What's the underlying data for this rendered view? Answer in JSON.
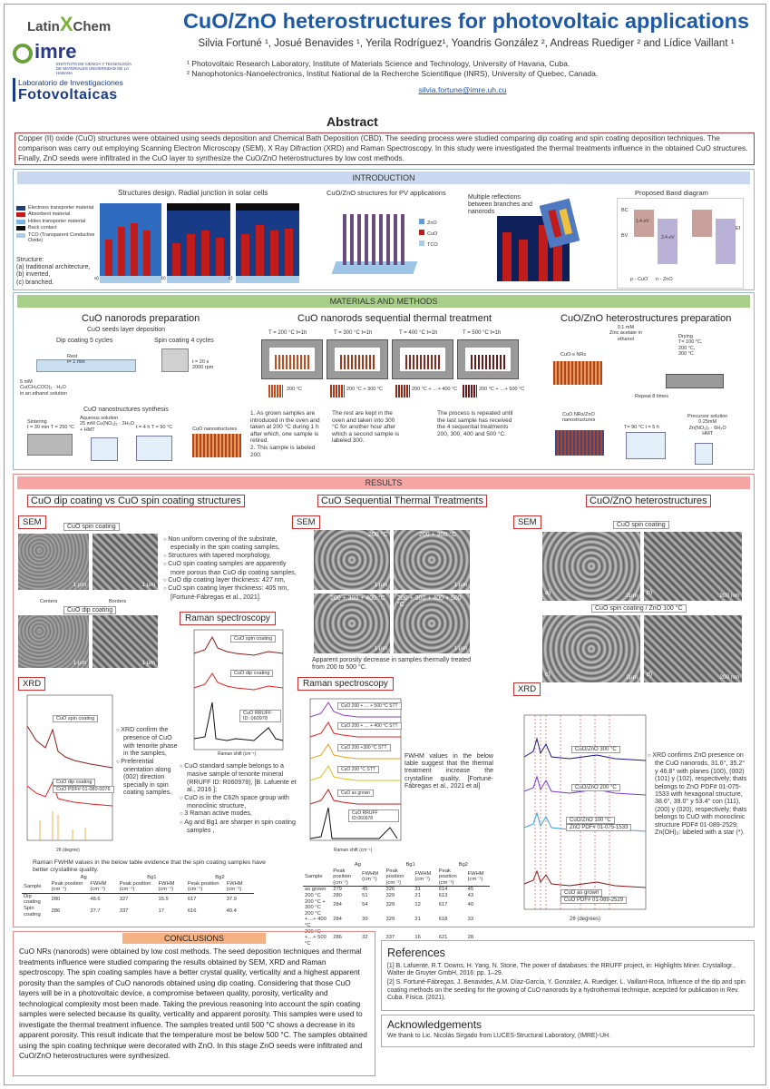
{
  "header": {
    "title": "CuO/ZnO heterostructures for photovoltaic applications",
    "authors": "Silvia Fortuné ¹, Josué Benavides ¹, Yerila Rodríguez¹, Yoandris González ², Andreas Ruediger ² and Lídice Vaillant ¹",
    "affiliation1": "¹ Photovoltaic Research Laboratory, Institute of Materials Science and Technology, University of Havana, Cuba.",
    "affiliation2": "² Nanophotonics-Nanoelectronics, Institut National de la Recherche Scientifique (INRS), University of Quebec, Canada.",
    "email": "silvia.fortune@imre.uh.cu"
  },
  "logos": {
    "latin_a": "Latin",
    "latin_x": "X",
    "latin_b": "Chem",
    "imre": "imre",
    "imre_sub": "INSTITUTO DE CIENCIA Y TECNOLOGÍA DE MATERIALES UNIVERSIDAD DE LA HABANA",
    "lab_line1": "Laboratorio de Investigaciones",
    "lab_line2": "Fotovoltaicas"
  },
  "abstract": {
    "heading": "Abstract",
    "text": "Copper (II) oxide (CuO) structures were obtained using seeds deposition and Chemical Bath Deposition (CBD). The seeding process were studied comparing dip coating and spin coating deposition techniques. The comparison was carry out employing Scanning Electron Microscopy (SEM), X Ray Difraction (XRD) and Raman Spectroscopy. In this study were investigated the thermal treatments influence in the obtained CuO structures. Finally, ZnO seeds were infiltrated in the CuO layer to synthesize the CuO/ZnO heterostructures by low cost methods."
  },
  "intro": {
    "banner": "INTRODUCTION",
    "structures_title": "Structures design. Radial junction in solar cells",
    "legend": [
      "Electrons transporter material",
      "Absorbent material",
      "Holes transporter material",
      "Back contact",
      "TCO (Transparent Conductive Oxide)"
    ],
    "legend_colors": [
      "#1b3f7a",
      "#c01c1c",
      "#7fb3e0",
      "#111111",
      "#a9cce9"
    ],
    "structure_note": "Structure:\n(a) traditional architecture,\n(b) inverted,\n(c) branched.",
    "panel_a": "a)",
    "panel_b": "b)",
    "panel_c": "c)",
    "cuo_zno_title": "CuO/ZnO structures for PV applications",
    "zno_legend": [
      "ZnO",
      "CuO",
      "TCO"
    ],
    "reflections": "Multiple reflections between branches and nanorods",
    "band_title": "Proposed Band diagram",
    "band_labels": [
      "BC",
      "BV",
      "p - CuO",
      "n - ZnO",
      "1.4 eV",
      "3.4 eV",
      "Ef"
    ]
  },
  "methods": {
    "banner": "MATERIALS AND METHODS",
    "cuo_prep_title": "CuO nanorods preparation",
    "seeds": "CuO seeds layer deposition",
    "dip": "Dip coating 5 cycles",
    "spin": "Spin coating 4 cycles",
    "rest": "Rest\nt= 1 min",
    "seed_sol": "5 mM\nCu(CH₃COO)₂ · H₂O\nin an ethanol solution",
    "spin_cond": "t = 20 s\n2000 rpm",
    "synth": "CuO nanostructures synthesis",
    "sinter": "Sintering\nt = 30 min T = 250 °C",
    "aqueous": "Aqueous solution\n25 mM Cu(NO₃)₂ · 3H₂O\n+ HMT",
    "bath": "t = 4 h T = 90 °C",
    "nanostruct": "CuO nanostructures",
    "thermal_title": "CuO nanorods sequential thermal treatment",
    "ovens": [
      "T = 200 °C  t=1h",
      "T = 300 °C  t=1h",
      "T = 400 °C  t=1h",
      "T = 500 °C  t=1h"
    ],
    "samples": [
      "200 °C",
      "200 °C + 300 °C",
      "200 °C + …+ 400 °C",
      "200 °C + …+ 500 °C"
    ],
    "step1": "1. As grown samples are introduced in the oven and taken at 200 °C during 1 h after which, one sample is retired.\n2. This sample is labeled 200.",
    "step2": "The rest are kept in the oven and taken into 300 °C for another hour after which a second sample is labeled 300.",
    "step3": "The process is repeated until the last sample has received the 4 sequential treatments 200, 300, 400 and 500 °C.",
    "hetero_title": "CuO/ZnO heterostructures preparation",
    "zinc": "0.1 mM\nZinc acetate in\nethanol",
    "drying": "Drying\nT= 100 °C,\n200 °C,\n300 °C",
    "cuo_s": "CuO-s NRs",
    "repeat": "Repeat 8 times",
    "precursor": "Precursor solution\n0.25mM\nZn(NO₃)₂ · 6H₂O\nHMT",
    "hetero_nr": "CuO NRs/ZnO\nnanostructures",
    "hetero_bath": "T= 90 °C  t = 5 h"
  },
  "results": {
    "banner": "RESULTS",
    "col1_title": "CuO dip coating vs CuO spin coating structures",
    "col2_title": "CuO Sequential Thermal Treatments",
    "col3_title": "CuO/ZnO heterostructures",
    "sem": "SEM",
    "xrd": "XRD",
    "raman": "Raman spectroscopy",
    "spin_label": "CuO spin coating",
    "dip_label": "CuO dip coating",
    "centers": "Centers",
    "borders": "Borders",
    "sem_bullets": [
      "Non uniform covering of the substrate, especially in the spin coating samples,",
      "Structures with tapered morphology,",
      "CuO spin coating samples are apparently more porous than CuO dip coating samples,",
      "CuO dip coating layer thickness: 427 nm,",
      "CuO spin coating layer thickness: 405 nm, [Fortuné-Fábregas et al., 2021]."
    ],
    "xrd_bullets": [
      "XRD confirm the presence of CuO with tenorite phase in the samples,",
      "Preferential orientation along (002) direction specially in spin coating samples."
    ],
    "raman_bullets": [
      "CuO standard sample belongs to a masive sample of tenorite mineral (RRUFF ID: R060978), [B. Lafuente et al., 2016 ];",
      "CuO is in the C62h space group with monoclinic structure,",
      "3 Raman active modes,",
      "Ag and Bg1 are sharper in spin coating samples ,"
    ],
    "raman_note": "Raman FWHM values in the below table evidence that the spin coating samples have better crystalline quality.",
    "xrd_legend": [
      "CuO spin coating",
      "CuO dip coating",
      "CuO PDF# 01-080-0076"
    ],
    "raman_legend": [
      "CuO spin coating",
      "CuO dip coating",
      "CuO RRUFF ID: 060978"
    ],
    "xrd_xlabel": "2θ (degree)",
    "intensity": "Intensity (a.u.)",
    "raman_x": "Raman shift (cm⁻¹)",
    "sem_thermal": [
      "200 °C",
      "200 + 300 °C",
      "200 + 300 + 400 °C",
      "200 + 300 + 400 + 500 °C"
    ],
    "porosity": "Apparent porosity decrease in samples thermally treated from 200 to 500 °C.",
    "thermal_legend": [
      "CuO 200 + … + 500 °C STT",
      "CuO 200 + … + 400 °C STT",
      "CuO 200 +300 °C STT",
      "CuO 200 °C STT",
      "CuO as grown",
      "CuO RRUFF ID:060978"
    ],
    "fwhm_note": "FWHM values in the below table suggest that the thermal treatment increase the crystalline quality. [Fortuné-Fábregas et al., 2021 et al]",
    "hetero_sem_labels": [
      "CuO spin coating",
      "CuO spin coating / ZnO 100 °C"
    ],
    "hetero_xrd_legend": [
      "CuO/ZnO 300 °C",
      "CuO/ZnO 200 °C",
      "CuO/ZnO 100 °C",
      "ZnO PDF# 01-075-1533",
      "CuO as grown",
      "CuO PDF# 01-089-2529"
    ],
    "hetero_xrd_x": "2θ (degrees)",
    "hetero_bullet": "XRD confirms ZnO presence on the CuO nanorods, 31.6°, 35.2° y 46.8° with planes (100), (002) (101) y (102), respectively; thats belongs to ZnO PDF# 01-075-1533 with hexagonal structure, 38.6°, 39.0° y 53.4° con (111), (200) y (020), respectively; thats belongs to CuO with monoclinic structure PDF# 01-089-2529; Zn(OH)₂: labeled with a star (*).",
    "table1": {
      "groups": [
        "Ag",
        "Bg1",
        "Bg2"
      ],
      "head": [
        "Sample",
        "Peak position (cm⁻¹)",
        "FWHM (cm⁻¹)",
        "Peak position (cm⁻¹)",
        "FWHM (cm⁻¹)",
        "Peak position (cm⁻¹)",
        "FWHM (cm⁻¹)"
      ],
      "rows": [
        [
          "Dip coating",
          "280",
          "48.6",
          "327",
          "15.5",
          "617",
          "37.9"
        ],
        [
          "Spin coating",
          "286",
          "37.7",
          "337",
          "17",
          "616",
          "40.4"
        ]
      ]
    },
    "table2": {
      "groups": [
        "Ag",
        "Bg1",
        "Bg2"
      ],
      "head": [
        "Sample",
        "Peak position (cm⁻¹)",
        "FWHM (cm⁻¹)",
        "Peak position (cm⁻¹)",
        "FWHM (cm⁻¹)",
        "Peak position (cm⁻¹)",
        "FWHM (cm⁻¹)"
      ],
      "rows": [
        [
          "as grown",
          "279",
          "45",
          "326",
          "31",
          "614",
          "45"
        ],
        [
          "200 °C",
          "280",
          "51",
          "329",
          "21",
          "613",
          "43"
        ],
        [
          "200 °C + 300 °C",
          "284",
          "54",
          "329",
          "12",
          "617",
          "40"
        ],
        [
          "200 °C +…+ 400 °C",
          "284",
          "39",
          "329",
          "21",
          "618",
          "33"
        ],
        [
          "200 °C +…+ 500 °C",
          "286",
          "32",
          "337",
          "16",
          "621",
          "28"
        ]
      ]
    }
  },
  "conclusions": {
    "heading": "CONCLUSIONS",
    "text": "CuO NRs (nanorods) were obtained by low cost methods. The seed deposition techniques and thermal treatments influence were studied comparing the results obtained by SEM, XRD and Raman spectroscopy. The spin coating samples have a better crystal quality, verticality and a highest apparent porosity than the samples of CuO nanorods obtained using dip coating. Considering that those CuO layers will be in a photovoltaic device, a compromise between quality, porosity, verticality and technological complexity most been made. Taking the previous reasoning into account the spin coating samples were selected because its quality, verticality and apparent porosity. This samples were used to investigate the thermal treatment influence. The samples treated until 500 °C shows a decrease in its apparent porosity. This result indicate that the temperature most be below 500 °C. The samples obtained using the spin coating technique were decorated with ZnO. In this stage ZnO seeds were infiltrated and CuO/ZnO heterostructures were synthesized."
  },
  "references": {
    "heading": "References",
    "items": [
      "[1]  B. Lafuente, R.T. Downs, H. Yang, N. Stone, The power of databases: the RRUFF project, in: Highlights Miner. Crystallogr., Walter de Gruyter GmbH, 2016: pp. 1–29.",
      "[2]  S. Fortuné-Fábregas, J. Benavides, A.M. Díaz-García, Y. González, A. Ruediger, L. Vaillant-Roca, Influence of the dip and spin coating methods on the seeding for the growing of CuO nanorods by a hydrothermal technique, acepcted for publication in Rev. Cuba. Física. (2021)."
    ]
  },
  "acknowledgements": {
    "heading": "Acknowledgements",
    "text": "We thank to Lic. Nicolás Sirgado from LUCES-Structural Laboratory, (IMRE)-UH."
  }
}
